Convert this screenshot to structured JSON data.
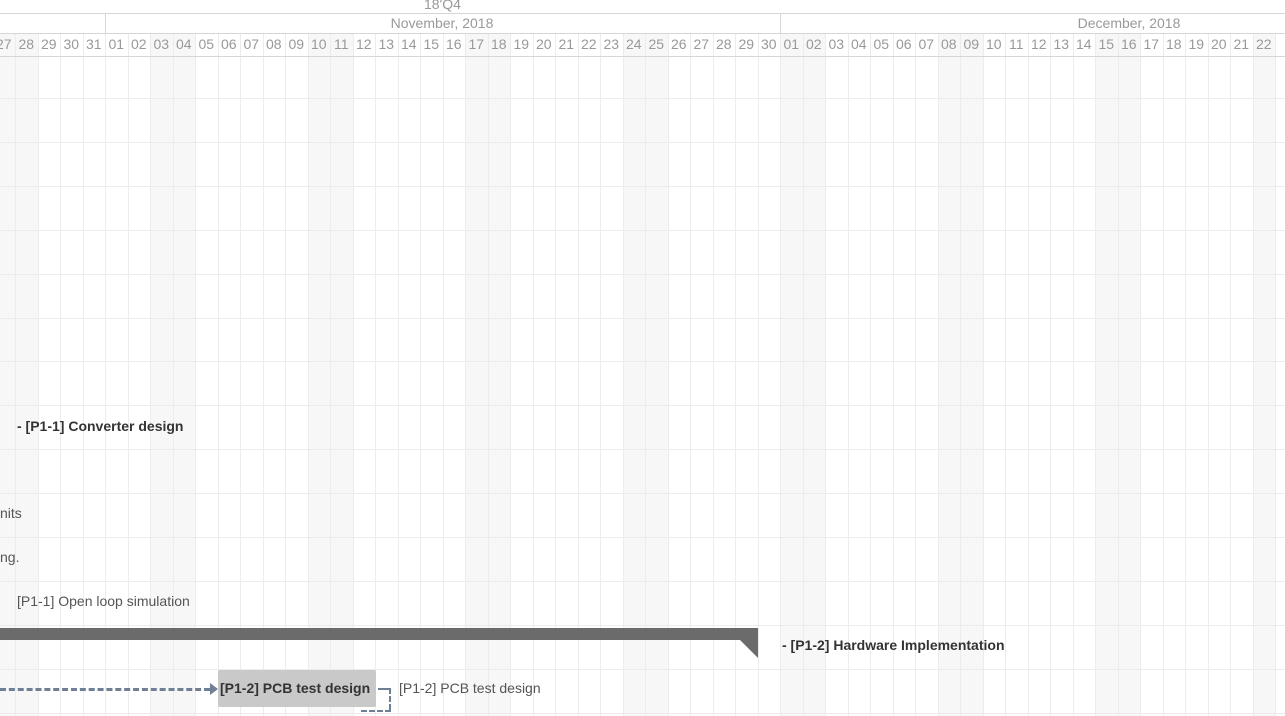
{
  "timeline": {
    "quarter_label": "18'Q4",
    "months": [
      {
        "label": "November, 2018"
      },
      {
        "label": "December, 2018"
      }
    ],
    "days": [
      "27",
      "28",
      "29",
      "30",
      "31",
      "01",
      "02",
      "03",
      "04",
      "05",
      "06",
      "07",
      "08",
      "09",
      "10",
      "11",
      "12",
      "13",
      "14",
      "15",
      "16",
      "17",
      "18",
      "19",
      "20",
      "21",
      "22",
      "23",
      "24",
      "25",
      "26",
      "27",
      "28",
      "29",
      "30",
      "01",
      "02",
      "03",
      "04",
      "05",
      "06",
      "07",
      "08",
      "09",
      "10",
      "11",
      "12",
      "13",
      "14",
      "15",
      "16",
      "17",
      "18",
      "19",
      "20",
      "21",
      "22"
    ]
  },
  "tasks": {
    "converter_design": "- [P1-1] Converter design",
    "limits_partial": "nits",
    "ng_partial": "ng.",
    "open_loop": "[P1-1] Open loop simulation",
    "hardware_impl": "- [P1-2] Hardware Implementation",
    "pcb_bar_text": "[P1-2] PCB test design",
    "pcb_label": "[P1-2] PCB test design"
  },
  "colors": {
    "summary_bar": "#6b6b6b",
    "task_bar": "#c9c9c9",
    "dependency": "#6f7f96",
    "grid": "#ececec",
    "header_text": "#999999"
  }
}
